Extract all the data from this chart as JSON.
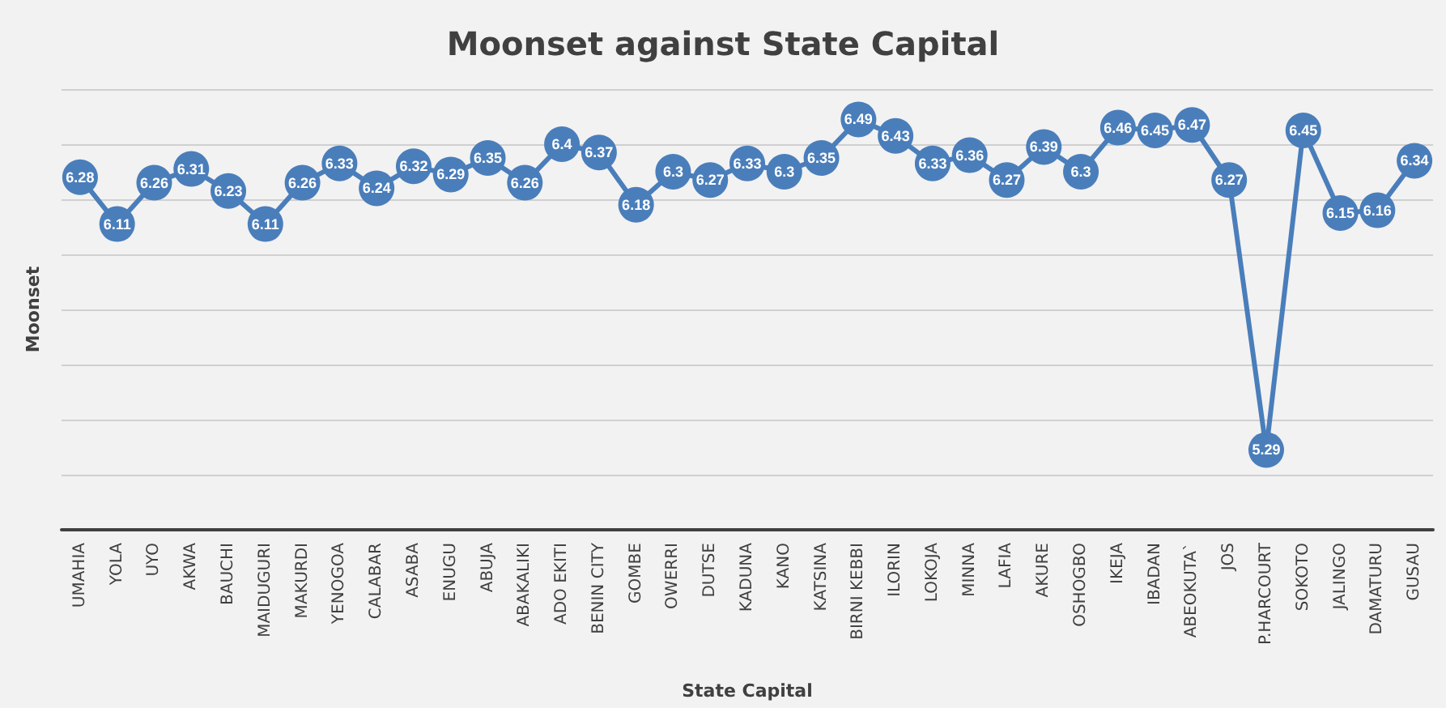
{
  "chart_data": {
    "type": "line",
    "title": "Moonset against State Capital",
    "xlabel": "State Capital",
    "ylabel": "Moonset",
    "categories": [
      "UMAHIA",
      "YOLA",
      "UYO",
      "AKWA",
      "BAUCHI",
      "MAIDUGURI",
      "MAKURDI",
      "YENOGOA",
      "CALABAR",
      "ASABA",
      "ENUGU",
      "ABUJA",
      "ABAKALIKI",
      "ADO EKITI",
      "BENIN CITY",
      "GOMBE",
      "OWERRI",
      "DUTSE",
      "KADUNA",
      "KANO",
      "KATSINA",
      "BIRNI KEBBI",
      "ILORIN",
      "LOKOJA",
      "MINNA",
      "LAFIA",
      "AKURE",
      "OSHOGBO",
      "IKEJA",
      "IBADAN",
      "ABEOKUTA`",
      "JOS",
      "P.HARCOURT",
      "SOKOTO",
      "JALINGO",
      "DAMATURU",
      "GUSAU"
    ],
    "series": [
      {
        "color": "#4a7ebb",
        "values": [
          6.28,
          6.11,
          6.26,
          6.31,
          6.23,
          6.11,
          6.26,
          6.33,
          6.24,
          6.32,
          6.29,
          6.35,
          6.26,
          6.4,
          6.37,
          6.18,
          6.3,
          6.27,
          6.33,
          6.3,
          6.35,
          6.49,
          6.43,
          6.33,
          6.36,
          6.27,
          6.39,
          6.3,
          6.46,
          6.45,
          6.47,
          6.27,
          5.29,
          6.45,
          6.15,
          6.16,
          6.34
        ]
      }
    ],
    "ylim": [
      5,
      6.6
    ],
    "yticks": [
      {
        "value": 5,
        "label": null
      },
      {
        "value": 5.2,
        "label": null
      },
      {
        "value": 5.4,
        "label": null
      },
      {
        "value": 5.6,
        "label": null
      },
      {
        "value": 5.8,
        "label": null
      },
      {
        "value": 6,
        "label": null
      },
      {
        "value": 6.2,
        "label": null
      },
      {
        "value": 6.4,
        "label": null
      },
      {
        "value": 6.6,
        "label": null
      }
    ],
    "tick_labels": "x",
    "grid": "y",
    "marker": "circle",
    "line_style": "solid",
    "data_labels": true
  }
}
